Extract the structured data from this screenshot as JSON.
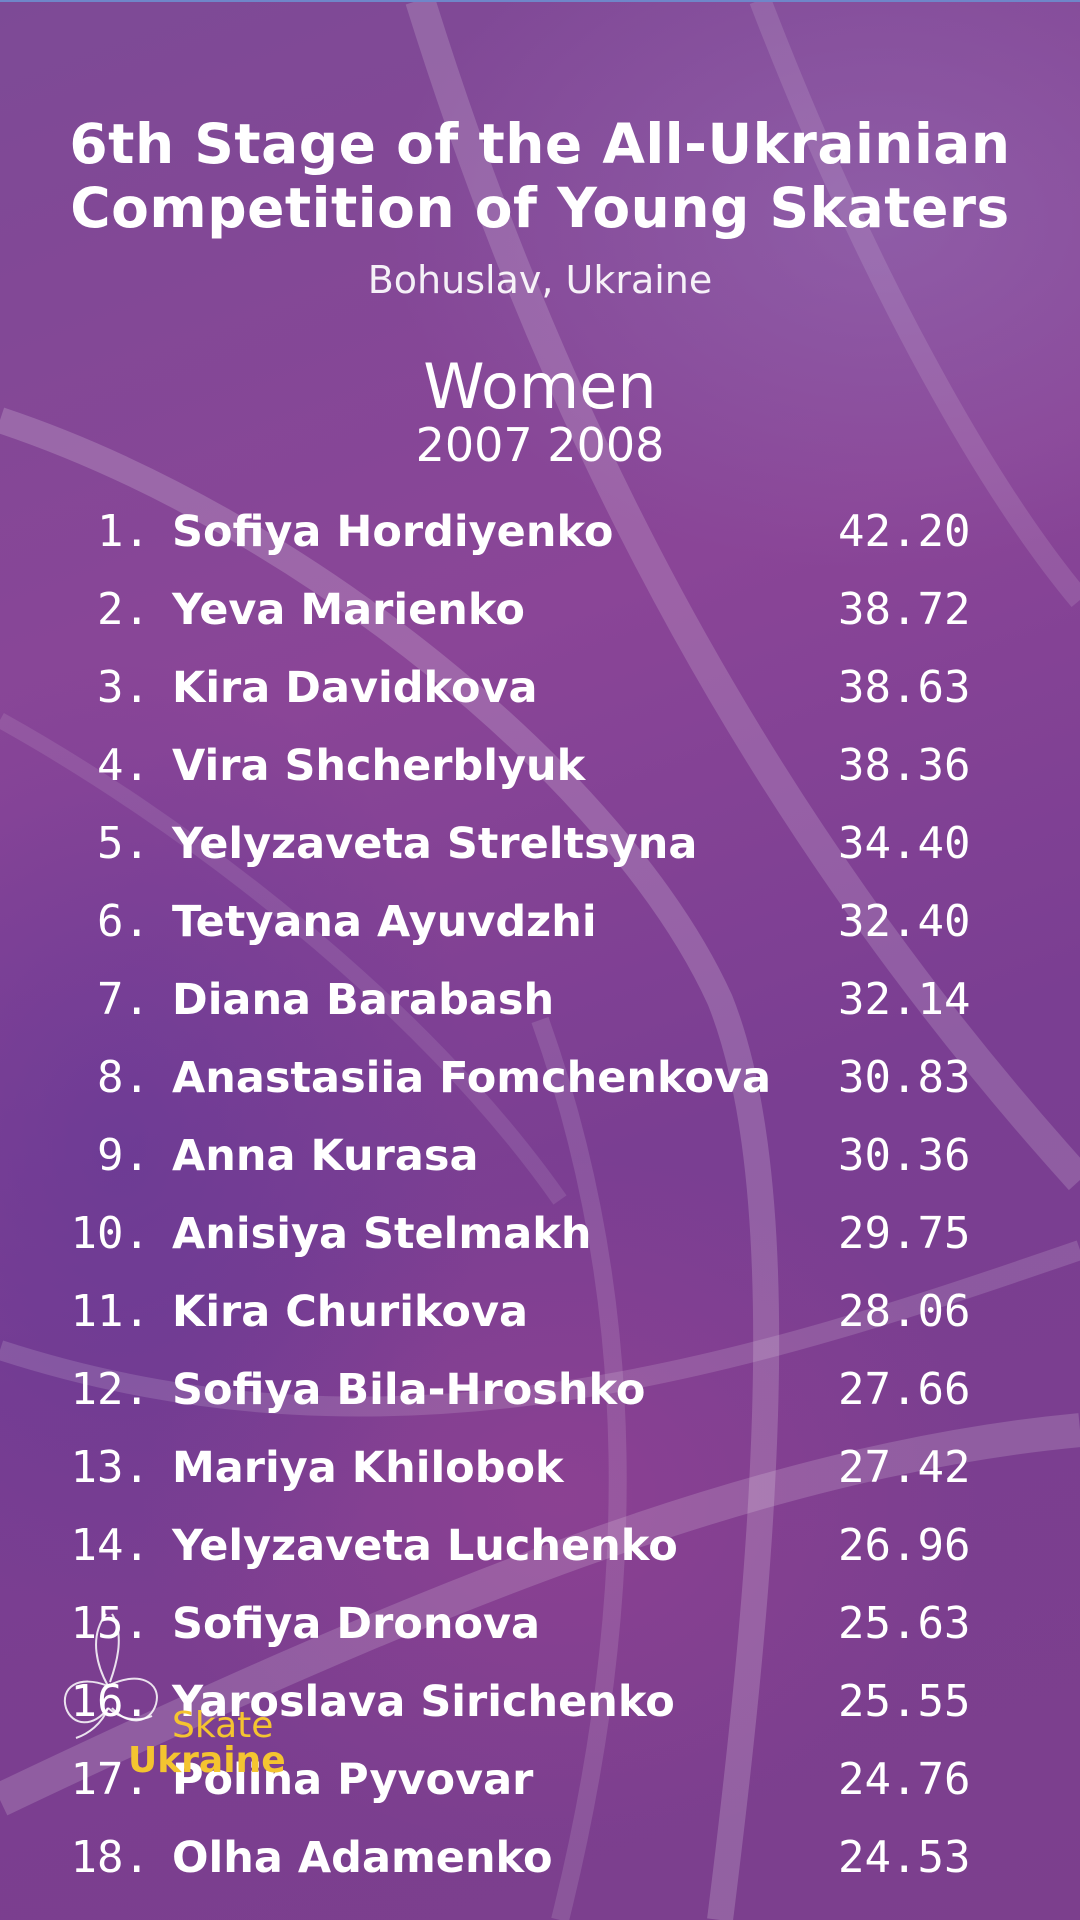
{
  "header": {
    "title_line1": "6th Stage of the All-Ukrainian",
    "title_line2": "Competition of Young Skaters",
    "location": "Bohuslav, Ukraine"
  },
  "category": {
    "name": "Women",
    "years": "2007 2008"
  },
  "results": [
    {
      "rank": "1.",
      "name": "Sofiya Hordiyenko",
      "score": "42.20"
    },
    {
      "rank": "2.",
      "name": "Yeva Marienko",
      "score": "38.72"
    },
    {
      "rank": "3.",
      "name": "Kira Davidkova",
      "score": "38.63"
    },
    {
      "rank": "4.",
      "name": "Vira Shcherblyuk",
      "score": "38.36"
    },
    {
      "rank": "5.",
      "name": "Yelyzaveta Streltsyna",
      "score": "34.40"
    },
    {
      "rank": "6.",
      "name": "Tetyana Ayuvdzhi",
      "score": "32.40"
    },
    {
      "rank": "7.",
      "name": "Diana Barabash",
      "score": "32.14"
    },
    {
      "rank": "8.",
      "name": "Anastasiia Fomchenkova",
      "score": "30.83"
    },
    {
      "rank": "9.",
      "name": "Anna Kurasa",
      "score": "30.36"
    },
    {
      "rank": "10.",
      "name": "Anisiya Stelmakh",
      "score": "29.75"
    },
    {
      "rank": "11.",
      "name": "Kira Churikova",
      "score": "28.06"
    },
    {
      "rank": "12.",
      "name": "Sofiya Bila-Hroshko",
      "score": "27.66"
    },
    {
      "rank": "13.",
      "name": "Mariya Khilobok",
      "score": "27.42"
    },
    {
      "rank": "14.",
      "name": "Yelyzaveta Luchenko",
      "score": "26.96"
    },
    {
      "rank": "15.",
      "name": "Sofiya Dronova",
      "score": "25.63"
    },
    {
      "rank": "16.",
      "name": "Yaroslava Sirichenko",
      "score": "25.55"
    },
    {
      "rank": "17.",
      "name": "Polina Pyvovar",
      "score": "24.76"
    },
    {
      "rank": "18.",
      "name": "Olha Adamenko",
      "score": "24.53"
    }
  ],
  "logo": {
    "line1": "Skate",
    "line2": "Ukraine",
    "icon": "skater-swirl-icon"
  },
  "colors": {
    "background": "#8a4597",
    "text": "#ffffff",
    "logo_accent": "#f4c430"
  }
}
